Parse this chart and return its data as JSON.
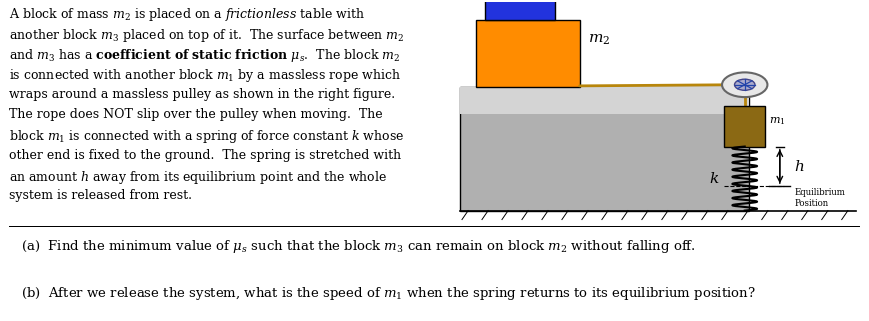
{
  "fig_width": 8.69,
  "fig_height": 3.21,
  "dpi": 100,
  "bg_color": "#ffffff",
  "paragraph_lines": [
    [
      "A block of mass ",
      "m",
      "2",
      " is placed on a ",
      "frictionless",
      " table with"
    ],
    [
      "another block ",
      "m",
      "3",
      " placed on top of it.  The surface between ",
      "m",
      "2"
    ],
    [
      "and ",
      "m",
      "3",
      " has a ",
      "coeff_bold",
      " ",
      "mu_s",
      ".  The block ",
      "m",
      "2"
    ],
    [
      "is connected with another block ",
      "m",
      "1",
      " by a massless rope which"
    ],
    [
      "wraps around a massless pulley as shown in the right figure."
    ],
    [
      "The rope does NOT slip over the pulley when moving.  The"
    ],
    [
      "block ",
      "m",
      "1",
      " is connected with a spring of force constant ",
      "k_it",
      " whose"
    ],
    [
      "other end is fixed to the ground.  The spring is stretched with"
    ],
    [
      "an amount ",
      "h_it",
      " away from its equilibrium point and the whole"
    ],
    [
      "system is released from rest."
    ]
  ],
  "qa_a": "(a)  Find the minimum value of μs such that the block m3 can remain on block m2 without falling off.",
  "qa_b": "(b)  After we release the system, what is the speed of m1 when the spring returns to its equilibrium position?",
  "table_fc": "#b0b0b0",
  "table_fc2": "#c8c8c8",
  "m2_color": "#ff8c00",
  "m3_color": "#2233dd",
  "m1_color": "#8B6914",
  "rope_color": "#b8860b",
  "spring_color": "#111111",
  "ground_color": "#222222"
}
